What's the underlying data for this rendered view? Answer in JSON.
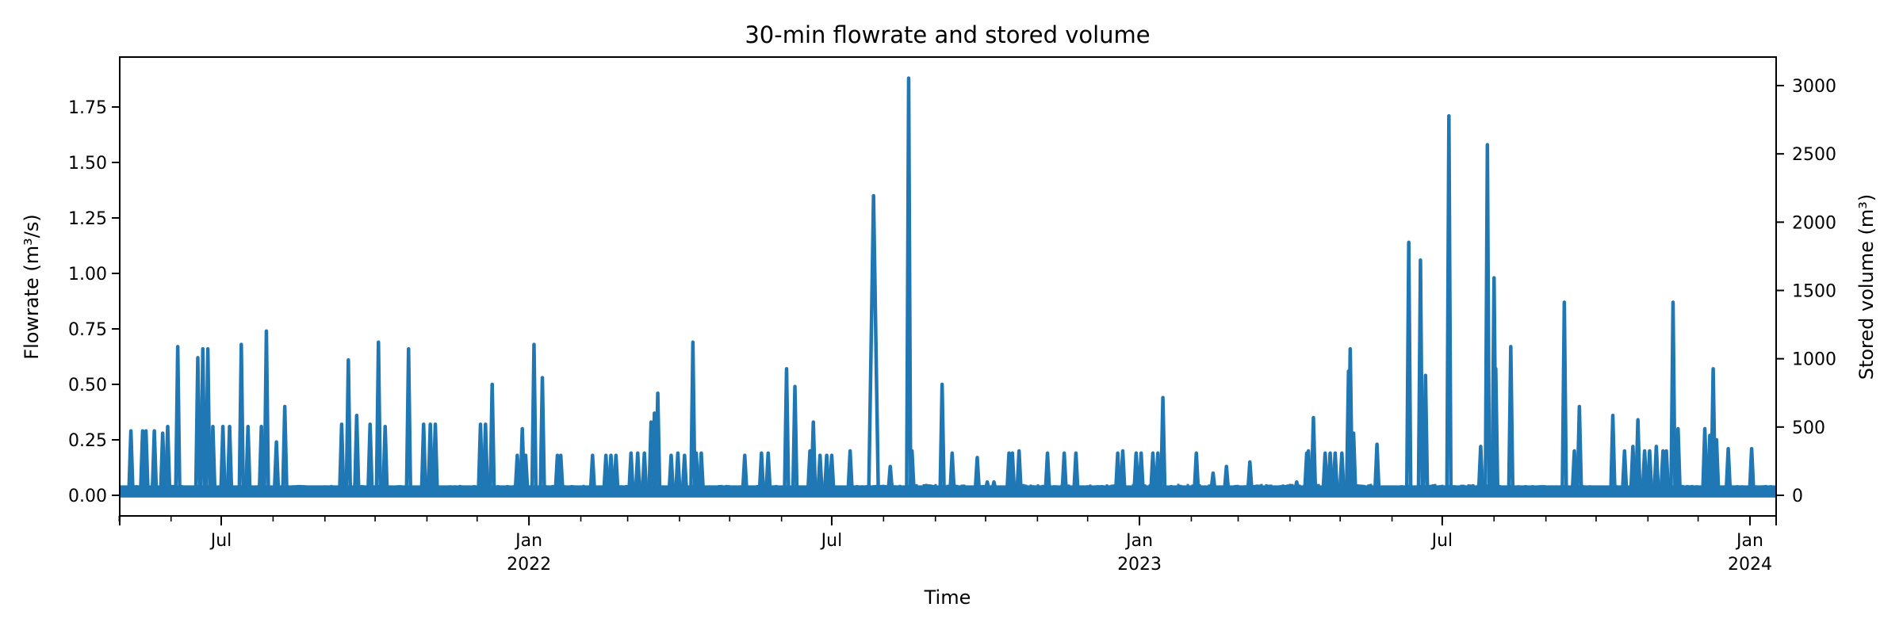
{
  "chart_data": {
    "type": "line",
    "title": "30-min flowrate and stored volume",
    "xlabel": "Time",
    "ylabel": "Flowrate (m³/s)",
    "y2label": "Stored volume (m³)",
    "ylim": [
      -0.09,
      1.96
    ],
    "y2lim": [
      -170,
      3185
    ],
    "xlim": [
      "2021-05-01",
      "2024-01-16"
    ],
    "grid": false,
    "legend": null,
    "line_color": "#1f77b4",
    "y_ticks": [
      0.0,
      0.25,
      0.5,
      0.75,
      1.0,
      1.25,
      1.5,
      1.75
    ],
    "y_tick_labels": [
      "0.00",
      "0.25",
      "0.50",
      "0.75",
      "1.00",
      "1.25",
      "1.50",
      "1.75"
    ],
    "y2_ticks": [
      0,
      500,
      1000,
      1500,
      2000,
      2500,
      3000
    ],
    "y2_tick_labels": [
      "0",
      "500",
      "1000",
      "1500",
      "2000",
      "2500",
      "3000"
    ],
    "x_major_ticks": [
      {
        "date": "2021-07-01",
        "label": "Jul",
        "sublabel": ""
      },
      {
        "date": "2022-01-01",
        "label": "Jan",
        "sublabel": "2022"
      },
      {
        "date": "2022-07-01",
        "label": "Jul",
        "sublabel": ""
      },
      {
        "date": "2023-01-01",
        "label": "Jan",
        "sublabel": "2023"
      },
      {
        "date": "2023-07-01",
        "label": "Jul",
        "sublabel": ""
      },
      {
        "date": "2024-01-01",
        "label": "Jan",
        "sublabel": "2024"
      }
    ],
    "series": [
      {
        "name": "Flowrate (m³/s)",
        "baseline_range": [
          0.0,
          0.04
        ],
        "peaks": [
          {
            "date": "2021-05-08",
            "value": 0.29
          },
          {
            "date": "2021-05-15",
            "value": 0.29
          },
          {
            "date": "2021-05-17",
            "value": 0.29
          },
          {
            "date": "2021-05-22",
            "value": 0.29
          },
          {
            "date": "2021-05-27",
            "value": 0.28
          },
          {
            "date": "2021-05-30",
            "value": 0.31
          },
          {
            "date": "2021-06-05",
            "value": 0.67
          },
          {
            "date": "2021-06-17",
            "value": 0.62
          },
          {
            "date": "2021-06-20",
            "value": 0.66
          },
          {
            "date": "2021-06-23",
            "value": 0.66
          },
          {
            "date": "2021-06-26",
            "value": 0.31
          },
          {
            "date": "2021-07-02",
            "value": 0.31
          },
          {
            "date": "2021-07-06",
            "value": 0.31
          },
          {
            "date": "2021-07-13",
            "value": 0.68
          },
          {
            "date": "2021-07-17",
            "value": 0.31
          },
          {
            "date": "2021-07-25",
            "value": 0.31
          },
          {
            "date": "2021-07-28",
            "value": 0.74
          },
          {
            "date": "2021-08-03",
            "value": 0.24
          },
          {
            "date": "2021-08-08",
            "value": 0.4
          },
          {
            "date": "2021-09-11",
            "value": 0.32
          },
          {
            "date": "2021-09-15",
            "value": 0.61
          },
          {
            "date": "2021-09-20",
            "value": 0.36
          },
          {
            "date": "2021-09-28",
            "value": 0.32
          },
          {
            "date": "2021-10-03",
            "value": 0.69
          },
          {
            "date": "2021-10-07",
            "value": 0.31
          },
          {
            "date": "2021-10-21",
            "value": 0.66
          },
          {
            "date": "2021-10-30",
            "value": 0.32
          },
          {
            "date": "2021-11-03",
            "value": 0.32
          },
          {
            "date": "2021-11-06",
            "value": 0.32
          },
          {
            "date": "2021-12-03",
            "value": 0.32
          },
          {
            "date": "2021-12-06",
            "value": 0.32
          },
          {
            "date": "2021-12-10",
            "value": 0.5
          },
          {
            "date": "2021-12-25",
            "value": 0.18
          },
          {
            "date": "2021-12-28",
            "value": 0.3
          },
          {
            "date": "2021-12-30",
            "value": 0.18
          },
          {
            "date": "2022-01-04",
            "value": 0.68
          },
          {
            "date": "2022-01-09",
            "value": 0.53
          },
          {
            "date": "2022-01-18",
            "value": 0.18
          },
          {
            "date": "2022-01-20",
            "value": 0.18
          },
          {
            "date": "2022-02-08",
            "value": 0.18
          },
          {
            "date": "2022-02-16",
            "value": 0.18
          },
          {
            "date": "2022-02-19",
            "value": 0.18
          },
          {
            "date": "2022-02-22",
            "value": 0.18
          },
          {
            "date": "2022-03-03",
            "value": 0.19
          },
          {
            "date": "2022-03-07",
            "value": 0.19
          },
          {
            "date": "2022-03-11",
            "value": 0.19
          },
          {
            "date": "2022-03-15",
            "value": 0.33
          },
          {
            "date": "2022-03-17",
            "value": 0.37
          },
          {
            "date": "2022-03-19",
            "value": 0.46
          },
          {
            "date": "2022-03-27",
            "value": 0.18
          },
          {
            "date": "2022-03-31",
            "value": 0.19
          },
          {
            "date": "2022-04-04",
            "value": 0.18
          },
          {
            "date": "2022-04-09",
            "value": 0.69
          },
          {
            "date": "2022-04-11",
            "value": 0.19
          },
          {
            "date": "2022-04-14",
            "value": 0.19
          },
          {
            "date": "2022-05-10",
            "value": 0.18
          },
          {
            "date": "2022-05-20",
            "value": 0.19
          },
          {
            "date": "2022-05-24",
            "value": 0.19
          },
          {
            "date": "2022-06-04",
            "value": 0.57
          },
          {
            "date": "2022-06-09",
            "value": 0.49
          },
          {
            "date": "2022-06-18",
            "value": 0.2
          },
          {
            "date": "2022-06-20",
            "value": 0.33
          },
          {
            "date": "2022-06-24",
            "value": 0.18
          },
          {
            "date": "2022-06-28",
            "value": 0.18
          },
          {
            "date": "2022-07-01",
            "value": 0.18
          },
          {
            "date": "2022-07-12",
            "value": 0.2
          },
          {
            "date": "2022-07-26",
            "value": 1.35,
            "wide": true
          },
          {
            "date": "2022-08-05",
            "value": 0.13
          },
          {
            "date": "2022-08-16",
            "value": 1.88
          },
          {
            "date": "2022-08-18",
            "value": 0.2
          },
          {
            "date": "2022-09-05",
            "value": 0.5
          },
          {
            "date": "2022-09-11",
            "value": 0.19
          },
          {
            "date": "2022-09-26",
            "value": 0.17
          },
          {
            "date": "2022-10-02",
            "value": 0.06
          },
          {
            "date": "2022-10-06",
            "value": 0.06
          },
          {
            "date": "2022-10-15",
            "value": 0.19
          },
          {
            "date": "2022-10-17",
            "value": 0.19
          },
          {
            "date": "2022-10-21",
            "value": 0.2
          },
          {
            "date": "2022-11-07",
            "value": 0.19
          },
          {
            "date": "2022-11-17",
            "value": 0.19
          },
          {
            "date": "2022-11-24",
            "value": 0.19
          },
          {
            "date": "2022-12-19",
            "value": 0.19
          },
          {
            "date": "2022-12-22",
            "value": 0.2
          },
          {
            "date": "2022-12-30",
            "value": 0.19
          },
          {
            "date": "2023-01-02",
            "value": 0.19
          },
          {
            "date": "2023-01-09",
            "value": 0.19
          },
          {
            "date": "2023-01-12",
            "value": 0.19
          },
          {
            "date": "2023-01-15",
            "value": 0.44
          },
          {
            "date": "2023-02-04",
            "value": 0.19
          },
          {
            "date": "2023-02-14",
            "value": 0.1
          },
          {
            "date": "2023-02-22",
            "value": 0.13
          },
          {
            "date": "2023-03-08",
            "value": 0.15
          },
          {
            "date": "2023-04-05",
            "value": 0.06
          },
          {
            "date": "2023-04-11",
            "value": 0.19
          },
          {
            "date": "2023-04-12",
            "value": 0.2
          },
          {
            "date": "2023-04-15",
            "value": 0.35
          },
          {
            "date": "2023-04-22",
            "value": 0.19
          },
          {
            "date": "2023-04-25",
            "value": 0.19
          },
          {
            "date": "2023-04-28",
            "value": 0.19
          },
          {
            "date": "2023-05-02",
            "value": 0.19
          },
          {
            "date": "2023-05-06",
            "value": 0.56
          },
          {
            "date": "2023-05-07",
            "value": 0.66
          },
          {
            "date": "2023-05-09",
            "value": 0.28
          },
          {
            "date": "2023-05-23",
            "value": 0.23
          },
          {
            "date": "2023-06-11",
            "value": 1.14
          },
          {
            "date": "2023-06-18",
            "value": 1.06
          },
          {
            "date": "2023-06-21",
            "value": 0.54
          },
          {
            "date": "2023-07-05",
            "value": 1.71
          },
          {
            "date": "2023-07-24",
            "value": 0.22
          },
          {
            "date": "2023-07-28",
            "value": 1.58
          },
          {
            "date": "2023-08-01",
            "value": 0.98
          },
          {
            "date": "2023-08-02",
            "value": 0.57
          },
          {
            "date": "2023-08-11",
            "value": 0.67
          },
          {
            "date": "2023-09-12",
            "value": 0.87
          },
          {
            "date": "2023-09-18",
            "value": 0.2
          },
          {
            "date": "2023-09-21",
            "value": 0.4
          },
          {
            "date": "2023-10-11",
            "value": 0.36
          },
          {
            "date": "2023-10-18",
            "value": 0.2
          },
          {
            "date": "2023-10-23",
            "value": 0.22
          },
          {
            "date": "2023-10-26",
            "value": 0.34
          },
          {
            "date": "2023-10-30",
            "value": 0.2
          },
          {
            "date": "2023-11-02",
            "value": 0.2
          },
          {
            "date": "2023-11-06",
            "value": 0.22
          },
          {
            "date": "2023-11-10",
            "value": 0.2
          },
          {
            "date": "2023-11-12",
            "value": 0.2
          },
          {
            "date": "2023-11-16",
            "value": 0.87
          },
          {
            "date": "2023-11-19",
            "value": 0.3
          },
          {
            "date": "2023-12-05",
            "value": 0.3
          },
          {
            "date": "2023-12-08",
            "value": 0.27
          },
          {
            "date": "2023-12-10",
            "value": 0.57
          },
          {
            "date": "2023-12-12",
            "value": 0.25
          },
          {
            "date": "2023-12-19",
            "value": 0.21
          },
          {
            "date": "2024-01-02",
            "value": 0.21
          }
        ]
      }
    ]
  }
}
